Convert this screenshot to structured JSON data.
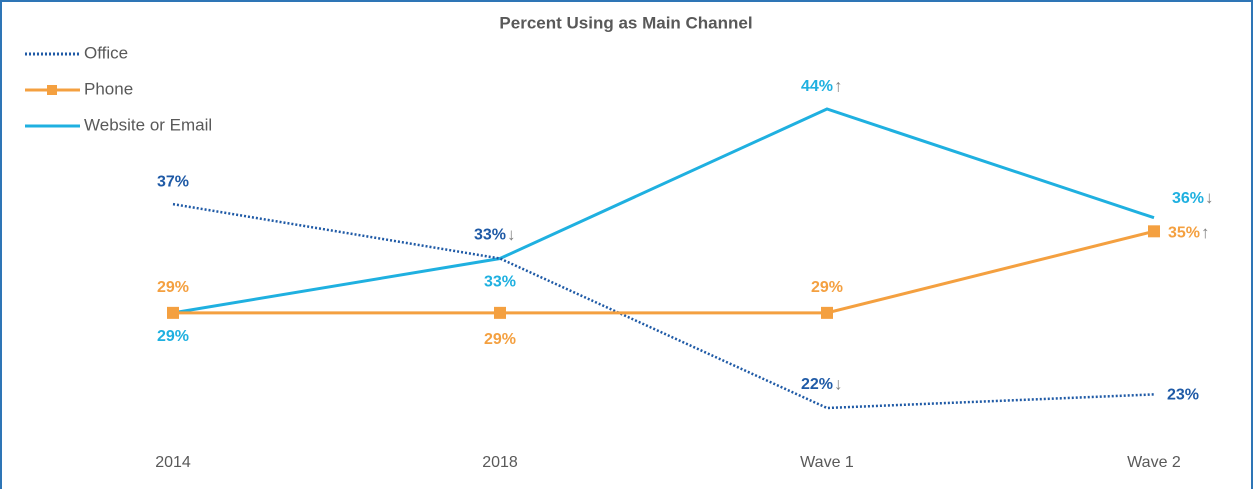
{
  "chart_data": {
    "type": "line",
    "title": "Percent Using as Main Channel",
    "categories": [
      "2014",
      "2018",
      "Wave 1",
      "Wave 2"
    ],
    "series": [
      {
        "name": "Office",
        "color": "#1f5aa6",
        "style": "dotted",
        "values": [
          37,
          33,
          22,
          23
        ],
        "value_labels": [
          "37%",
          "33%",
          "22%",
          "23%"
        ],
        "change_markers": [
          null,
          "↓",
          "↓",
          null
        ]
      },
      {
        "name": "Phone",
        "color": "#f4a040",
        "style": "solid",
        "marker": "square",
        "values": [
          29,
          29,
          29,
          35
        ],
        "value_labels": [
          "29%",
          "29%",
          "29%",
          "35%"
        ],
        "change_markers": [
          null,
          null,
          null,
          "↑"
        ]
      },
      {
        "name": "Website or Email",
        "color": "#1fb0e0",
        "style": "solid",
        "values": [
          29,
          33,
          44,
          36
        ],
        "value_labels": [
          "29%",
          "33%",
          "44%",
          "36%"
        ],
        "change_markers": [
          null,
          null,
          "↑",
          "↓"
        ]
      }
    ],
    "legend": "top-left",
    "grid": false
  }
}
